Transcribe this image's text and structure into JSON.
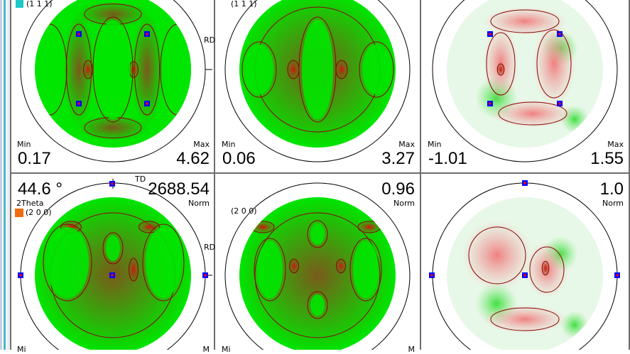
{
  "colors": {
    "accent_111": "#1ec8c8",
    "accent_200": "#f06a10",
    "low": "#00e600",
    "mid": "#7a5a1a",
    "peak": "#d81010",
    "marker": "#0000ff"
  },
  "row1": {
    "reflection": "(1 1 1)",
    "panels": [
      {
        "min_label": "Min",
        "min": "0.17",
        "max_label": "Max",
        "max": "4.62",
        "axis": "RD"
      },
      {
        "reflection": "(1 1 1)",
        "min_label": "Min",
        "min": "0.06",
        "max_label": "Max",
        "max": "3.27"
      },
      {
        "min_label": "Min",
        "min": "-1.01",
        "max_label": "Max",
        "max": "1.55"
      }
    ]
  },
  "row2": {
    "angle": "44.6 °",
    "angle_label": "2Theta",
    "reflection": "(2 0 0)",
    "panels": [
      {
        "value": "2688.54",
        "unit": "Norm",
        "axis_td": "TD",
        "axis_rd": "RD",
        "min_label": "Mi",
        "max_label": "M"
      },
      {
        "reflection": "(2 0 0)",
        "value": "0.96",
        "unit": "Norm",
        "min_label": "Mi",
        "max_label": "M"
      },
      {
        "value": "1.0",
        "unit": "Norm"
      }
    ]
  }
}
